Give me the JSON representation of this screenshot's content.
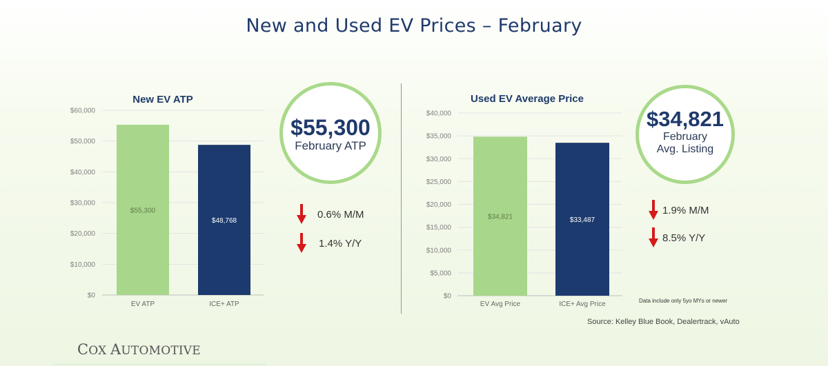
{
  "page": {
    "title": "New and Used EV Prices – February",
    "footnote": "Data include only 5yo MYs or newer",
    "source": "Source: Kelley Blue Book, Dealertrack, vAuto",
    "logo": "COX AUTOMOTIVE"
  },
  "colors": {
    "ev": "#a8d68a",
    "ice": "#1c3a6e",
    "arrow": "#d61a1a",
    "ring": "#a9d98a",
    "title": "#1f3a6b"
  },
  "chart_data": [
    {
      "type": "bar",
      "title": "New EV ATP",
      "categories": [
        "EV ATP",
        "ICE+ ATP"
      ],
      "values": [
        55300,
        48768
      ],
      "data_labels": [
        "$55,300",
        "$48,768"
      ],
      "ylim": [
        0,
        60000
      ],
      "yticks": [
        0,
        10000,
        20000,
        30000,
        40000,
        50000,
        60000
      ],
      "ytick_labels": [
        "$0",
        "$10,000",
        "$20,000",
        "$30,000",
        "$40,000",
        "$50,000",
        "$60,000"
      ],
      "grid": true,
      "legend": "none"
    },
    {
      "type": "bar",
      "title": "Used EV Average Price",
      "categories": [
        "EV Avg Price",
        "ICE+ Avg Price"
      ],
      "values": [
        34821,
        33487
      ],
      "data_labels": [
        "$34,821",
        "$33,487"
      ],
      "ylim": [
        0,
        40000
      ],
      "yticks": [
        0,
        5000,
        10000,
        15000,
        20000,
        25000,
        30000,
        35000,
        40000
      ],
      "ytick_labels": [
        "$0",
        "$5,000",
        "$10,000",
        "$15,000",
        "$20,000",
        "$25,000",
        "$30,000",
        "$35,000",
        "$40,000"
      ],
      "grid": true,
      "legend": "none"
    }
  ],
  "highlights": [
    {
      "value": "$55,300",
      "label_lines": [
        "February ATP"
      ]
    },
    {
      "value": "$34,821",
      "label_lines": [
        "February",
        "Avg. Listing"
      ]
    }
  ],
  "changes": [
    [
      {
        "text": "0.6% M/M",
        "direction": "down"
      },
      {
        "text": "1.4% Y/Y",
        "direction": "down"
      }
    ],
    [
      {
        "text": "1.9% M/M",
        "direction": "down"
      },
      {
        "text": "8.5% Y/Y",
        "direction": "down"
      }
    ]
  ]
}
